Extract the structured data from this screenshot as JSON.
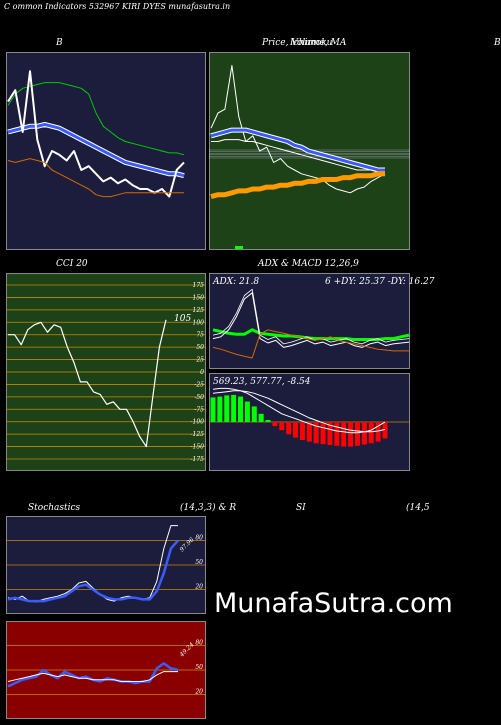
{
  "page": {
    "title": "C                    ommon  Indicators 532967 KIRI DYES munafasutra.in",
    "watermark": "MunafaSutra.com"
  },
  "panels": {
    "bollinger": {
      "title": "B"
    },
    "price": {
      "title_a": "Price,  Volume,  MA",
      "title_b": "Ichimoku",
      "edge_label": "B"
    },
    "cci": {
      "title": "CCI 20",
      "value_label": "105"
    },
    "adx": {
      "title": "ADX  & MACD 12,26,9",
      "readout_left": "ADX: 21.8",
      "readout_right": "6  +DY: 25.37 -DY: 16.27"
    },
    "macd": {
      "readout": "569.23,  577.77,  -8.54"
    },
    "stoch": {
      "title_left": "Stochastics",
      "title_right": "(14,3,3) & R",
      "value_label": "97.96"
    },
    "rsi": {
      "title_mid": "SI",
      "title_right": "(14,5",
      "value_label": "49.24"
    }
  },
  "chart_data": [
    {
      "type": "line",
      "name": "bollinger",
      "ylim": [
        0,
        100
      ],
      "series": [
        {
          "name": "upper",
          "color": "#00cc00",
          "values": [
            74,
            80,
            83,
            84,
            85,
            86,
            86,
            86,
            85,
            84,
            83,
            80,
            70,
            63,
            60,
            57,
            55,
            54,
            53,
            52,
            51,
            50,
            49,
            49,
            48
          ]
        },
        {
          "name": "mid",
          "color": "#3a5cff",
          "values": [
            60,
            61,
            62,
            63,
            63,
            64,
            63,
            62,
            60,
            58,
            56,
            54,
            52,
            50,
            48,
            46,
            44,
            43,
            42,
            41,
            40,
            39,
            38,
            38,
            37
          ]
        },
        {
          "name": "price",
          "color": "#ffffff",
          "values": [
            76,
            82,
            60,
            92,
            56,
            42,
            50,
            48,
            45,
            50,
            40,
            42,
            38,
            34,
            36,
            33,
            35,
            32,
            30,
            30,
            28,
            30,
            26,
            40,
            44
          ]
        },
        {
          "name": "lower",
          "color": "#d46a00",
          "values": [
            45,
            44,
            45,
            46,
            45,
            44,
            40,
            38,
            36,
            34,
            32,
            30,
            27,
            26,
            26,
            27,
            28,
            28,
            28,
            28,
            28,
            28,
            28,
            28,
            28
          ]
        }
      ]
    },
    {
      "type": "line",
      "name": "price",
      "ylim": [
        0,
        100
      ],
      "series": [
        {
          "name": "price",
          "color": "#ffffff",
          "values": [
            62,
            70,
            72,
            95,
            68,
            55,
            58,
            50,
            52,
            44,
            46,
            42,
            40,
            38,
            37,
            36,
            35,
            32,
            30,
            29,
            28,
            30,
            31,
            34,
            36,
            38
          ]
        },
        {
          "name": "ma-blue",
          "color": "#3a5cff",
          "values": [
            58,
            59,
            60,
            61,
            61,
            61,
            60,
            59,
            58,
            57,
            56,
            55,
            53,
            52,
            50,
            49,
            48,
            47,
            46,
            45,
            44,
            43,
            42,
            41,
            40,
            40
          ]
        },
        {
          "name": "ma-white",
          "color": "#ffffff",
          "values": [
            55,
            55,
            56,
            56,
            56,
            55,
            55,
            54,
            53,
            52,
            51,
            50,
            49,
            48,
            47,
            46,
            45,
            44,
            43,
            42,
            41,
            40,
            40,
            40,
            39,
            39
          ]
        },
        {
          "name": "ma-orange",
          "color": "#ff9900",
          "values": [
            26,
            27,
            27,
            28,
            29,
            29,
            30,
            30,
            31,
            31,
            32,
            32,
            33,
            33,
            34,
            34,
            35,
            35,
            35,
            36,
            36,
            37,
            37,
            37,
            38,
            38
          ]
        }
      ]
    },
    {
      "type": "line",
      "name": "cci",
      "ylim": [
        -175,
        175
      ],
      "ticks": [
        175,
        150,
        125,
        100,
        75,
        50,
        25,
        0,
        -25,
        -50,
        -75,
        -100,
        -125,
        -150,
        -175
      ],
      "values": [
        75,
        75,
        55,
        85,
        95,
        100,
        80,
        95,
        90,
        50,
        20,
        -20,
        -20,
        -40,
        -45,
        -65,
        -60,
        -75,
        -75,
        -100,
        -130,
        -150,
        -50,
        50,
        105
      ]
    },
    {
      "type": "line",
      "name": "adx",
      "ylim": [
        0,
        100
      ],
      "series": [
        {
          "name": "adx",
          "color": "#00ff00",
          "values": [
            40,
            38,
            36,
            35,
            35,
            40,
            36,
            35,
            34,
            33,
            33,
            32,
            31,
            30,
            30,
            30,
            30,
            30,
            29,
            29,
            29,
            29,
            30,
            30,
            32,
            34
          ]
        },
        {
          "name": "+dy",
          "color": "#ffffff",
          "values": [
            30,
            32,
            40,
            55,
            75,
            82,
            30,
            25,
            28,
            20,
            22,
            25,
            28,
            24,
            26,
            22,
            24,
            26,
            22,
            20,
            24,
            26,
            22,
            24,
            25,
            26
          ]
        },
        {
          "name": "-dy",
          "color": "#d46a00",
          "values": [
            20,
            18,
            15,
            12,
            10,
            8,
            35,
            40,
            38,
            36,
            34,
            32,
            30,
            28,
            30,
            32,
            28,
            26,
            24,
            22,
            20,
            18,
            17,
            16,
            16,
            16
          ]
        }
      ]
    },
    {
      "type": "bar",
      "name": "macd",
      "ylim": [
        -100,
        100
      ],
      "histogram": [
        60,
        62,
        65,
        66,
        62,
        50,
        38,
        20,
        5,
        -10,
        -20,
        -30,
        -38,
        -44,
        -48,
        -52,
        -54,
        -56,
        -58,
        -60,
        -60,
        -58,
        -55,
        -52,
        -48,
        -40
      ],
      "series": [
        {
          "name": "macd",
          "color": "#ffffff",
          "values": [
            80,
            82,
            82,
            80,
            76,
            70,
            60,
            50,
            40,
            30,
            20,
            14,
            8,
            2,
            -4,
            -10,
            -14,
            -18,
            -22,
            -24,
            -26,
            -26,
            -24,
            -20,
            -10,
            0
          ]
        },
        {
          "name": "signal",
          "color": "#ffffff",
          "values": [
            70,
            72,
            74,
            76,
            76,
            74,
            70,
            64,
            58,
            50,
            42,
            34,
            26,
            18,
            10,
            4,
            -2,
            -8,
            -12,
            -16,
            -20,
            -22,
            -24,
            -24,
            -22,
            -18
          ]
        }
      ]
    },
    {
      "type": "line",
      "name": "stochastics",
      "ylim": [
        0,
        100
      ],
      "ticks": [
        80,
        50,
        20
      ],
      "series": [
        {
          "name": "%k",
          "color": "#ffffff",
          "values": [
            10,
            8,
            12,
            6,
            5,
            8,
            10,
            12,
            15,
            20,
            28,
            30,
            22,
            14,
            8,
            6,
            10,
            12,
            10,
            8,
            10,
            30,
            70,
            98,
            98
          ]
        },
        {
          "name": "%d",
          "color": "#3a5cff",
          "values": [
            8,
            10,
            8,
            6,
            6,
            6,
            8,
            10,
            12,
            18,
            24,
            26,
            20,
            14,
            10,
            8,
            8,
            10,
            10,
            8,
            8,
            18,
            40,
            70,
            80
          ]
        }
      ]
    },
    {
      "type": "line",
      "name": "rsi",
      "ylim": [
        0,
        100
      ],
      "ticks": [
        80,
        50,
        20
      ],
      "series": [
        {
          "name": "rsi-blue",
          "color": "#3a5cff",
          "values": [
            30,
            34,
            38,
            40,
            42,
            50,
            44,
            40,
            48,
            44,
            40,
            42,
            38,
            36,
            40,
            38,
            36,
            36,
            34,
            36,
            36,
            52,
            58,
            52,
            50
          ]
        },
        {
          "name": "rsi-white",
          "color": "#ffffff",
          "values": [
            36,
            38,
            40,
            42,
            44,
            46,
            44,
            42,
            44,
            42,
            40,
            40,
            38,
            38,
            38,
            38,
            36,
            36,
            36,
            36,
            38,
            44,
            48,
            48,
            48
          ]
        }
      ]
    }
  ]
}
